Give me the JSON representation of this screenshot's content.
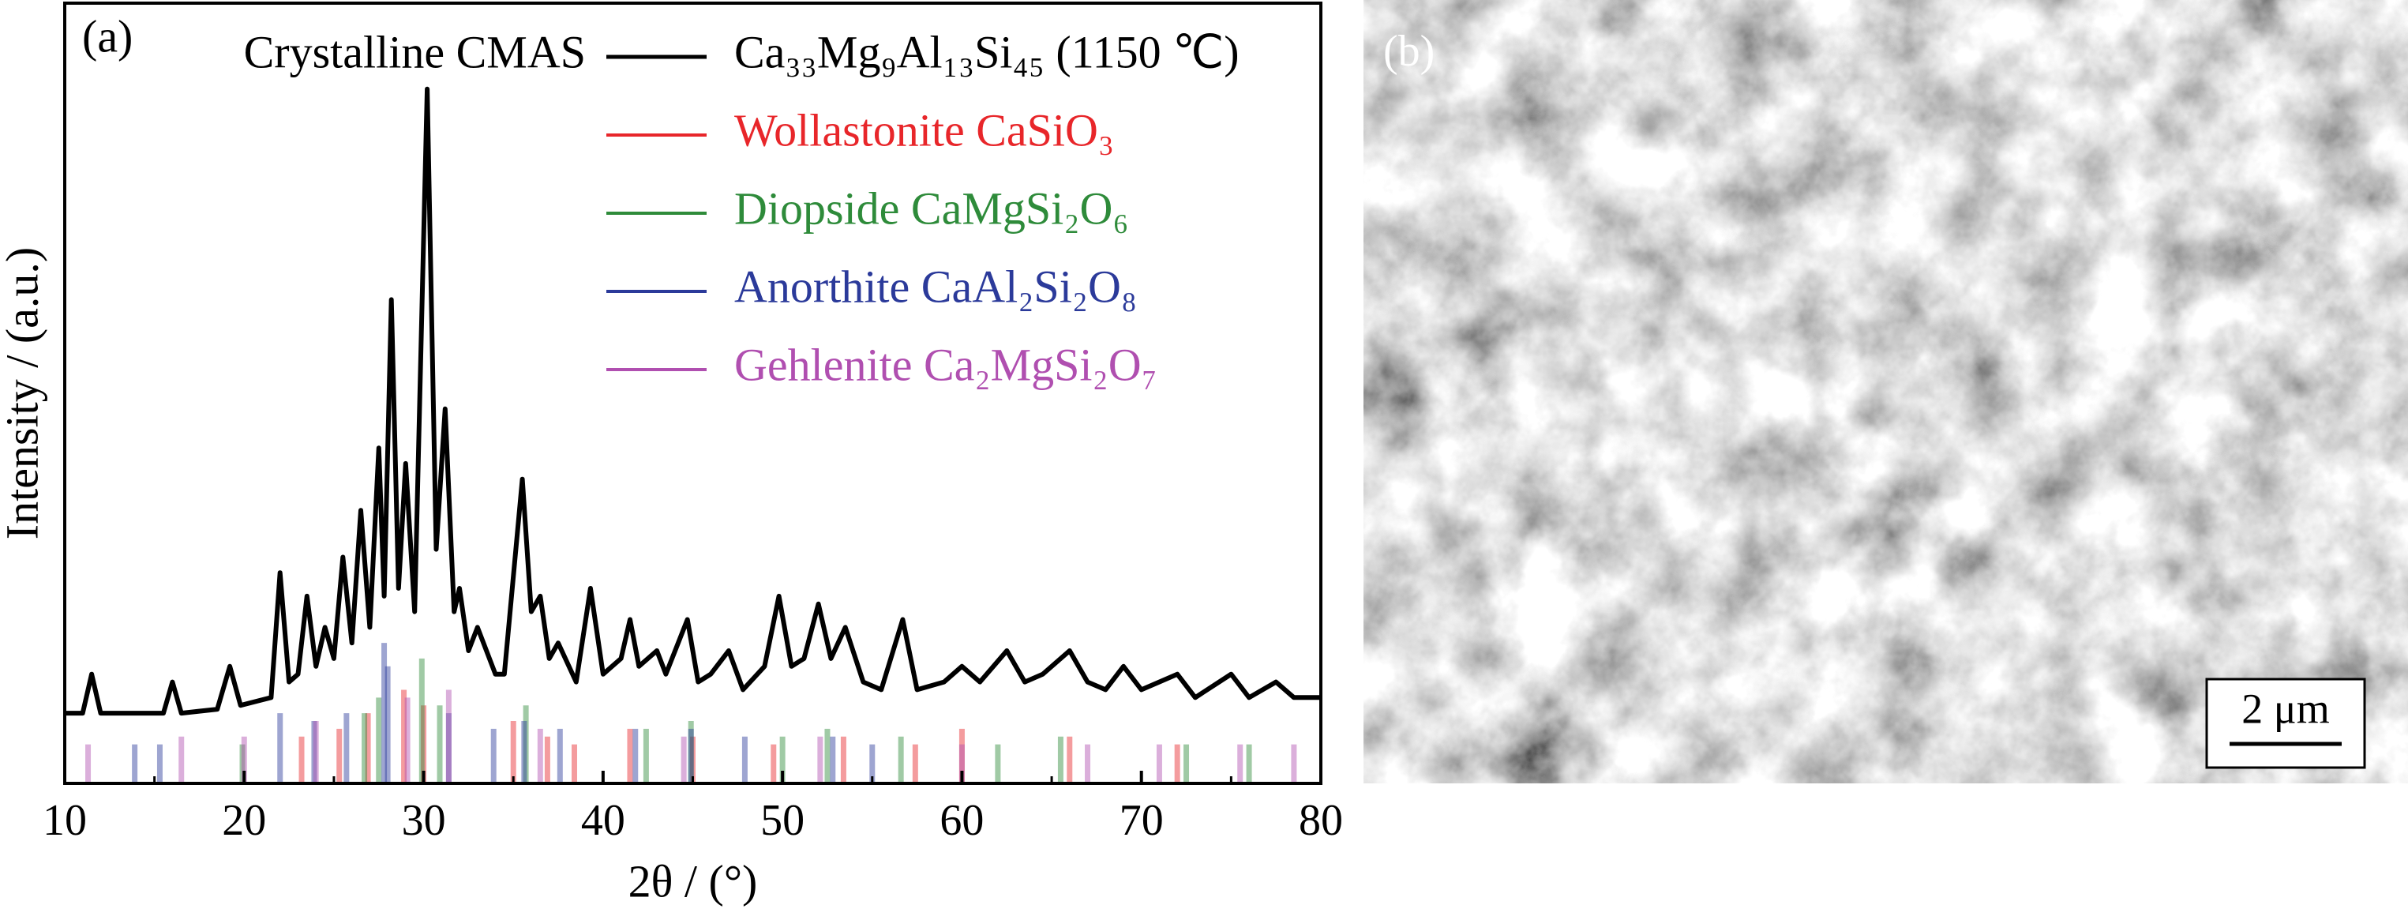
{
  "chart_data": {
    "type": "line",
    "panel_label": "(a)",
    "xlabel": "2θ / (°)",
    "ylabel": "Intensity / (a.u.)",
    "legend_title": "Crystalline CMAS",
    "xlim": [
      10,
      80
    ],
    "xticks": [
      10,
      20,
      30,
      40,
      50,
      60,
      70,
      80
    ],
    "ylim": [
      0,
      100
    ],
    "x": [
      10,
      11,
      11.5,
      12,
      14,
      15.5,
      16,
      16.5,
      18.5,
      19.2,
      19.8,
      21.5,
      22,
      22.5,
      23,
      23.5,
      24,
      24.5,
      25,
      25.5,
      26,
      26.5,
      27,
      27.5,
      27.8,
      28.2,
      28.6,
      29,
      29.5,
      30.2,
      30.7,
      31.2,
      31.7,
      32,
      32.5,
      33,
      34,
      34.5,
      35.5,
      36,
      36.5,
      37,
      37.5,
      38.5,
      39.3,
      40,
      41,
      41.5,
      42,
      43,
      43.5,
      44.7,
      45.3,
      46,
      47,
      47.8,
      49,
      49.8,
      50.5,
      51.2,
      52,
      52.7,
      53.5,
      54.5,
      55.5,
      56.7,
      57.5,
      59,
      60,
      61,
      62.5,
      63.5,
      64.5,
      66,
      67,
      68,
      69,
      70,
      72,
      73,
      75,
      76,
      77.5,
      78.5,
      80
    ],
    "series": [
      {
        "name": "Ca₃₃Mg₉Al₁₃Si₄₅ (1150 ℃)",
        "color": "#000000",
        "style": "line",
        "values": [
          9,
          9,
          14,
          9,
          9,
          9,
          13,
          9,
          9.5,
          15,
          10,
          11,
          27,
          13,
          14,
          24,
          15,
          20,
          16,
          29,
          18,
          35,
          20,
          43,
          24,
          62,
          25,
          41,
          22,
          89,
          30,
          48,
          22,
          25,
          17,
          20,
          14,
          14,
          39,
          22,
          24,
          16,
          18,
          13,
          25,
          14,
          16,
          21,
          15,
          17,
          14,
          21,
          13,
          14,
          17,
          12,
          15,
          24,
          15,
          16,
          23,
          16,
          20,
          13,
          12,
          21,
          12,
          13,
          15,
          13,
          17,
          13,
          14,
          17,
          13,
          12,
          15,
          12,
          14,
          11,
          14,
          11,
          13,
          11,
          11
        ]
      },
      {
        "name": "Wollastonite CaSiO₃",
        "color": "#e8262a",
        "style": "stick",
        "x": [
          23.2,
          25.3,
          26.9,
          28.9,
          30.0,
          35.0,
          36.9,
          38.4,
          41.5,
          45.0,
          49.5,
          53.4,
          57.4,
          60.0,
          66.0,
          72.0
        ],
        "values": [
          6,
          7,
          9,
          12,
          10,
          8,
          6,
          5,
          7,
          6,
          5,
          6,
          5,
          7,
          6,
          5
        ]
      },
      {
        "name": "Diopside CaMgSi₂O₆",
        "color": "#2e8b3a",
        "style": "stick",
        "x": [
          19.9,
          26.7,
          27.5,
          29.9,
          30.9,
          35.7,
          42.4,
          44.9,
          50.0,
          52.5,
          56.6,
          62.0,
          65.5,
          72.5,
          76.0
        ],
        "values": [
          5,
          9,
          11,
          16,
          10,
          10,
          7,
          8,
          6,
          7,
          6,
          5,
          6,
          5,
          5
        ]
      },
      {
        "name": "Anorthite CaAl₂Si₂O₈",
        "color": "#2b3a9a",
        "style": "stick",
        "x": [
          13.9,
          15.3,
          22.0,
          23.9,
          25.7,
          27.8,
          28.0,
          31.4,
          33.9,
          35.6,
          37.6,
          41.8,
          44.9,
          47.9,
          52.8,
          55.0
        ],
        "values": [
          5,
          5,
          9,
          8,
          9,
          18,
          15,
          9,
          7,
          8,
          7,
          7,
          7,
          6,
          6,
          5
        ]
      },
      {
        "name": "Gehlenite Ca₂MgSi₂O₇",
        "color": "#b04fb0",
        "style": "stick",
        "x": [
          11.3,
          16.5,
          20.0,
          24.0,
          29.1,
          31.4,
          36.5,
          44.5,
          52.1,
          60.0,
          67.0,
          71.0,
          75.5,
          78.5
        ],
        "values": [
          5,
          6,
          6,
          8,
          11,
          12,
          7,
          6,
          6,
          5,
          5,
          5,
          5,
          5
        ]
      }
    ]
  },
  "image_panel": {
    "label": "(b)",
    "scale_bar": "2 μm"
  }
}
